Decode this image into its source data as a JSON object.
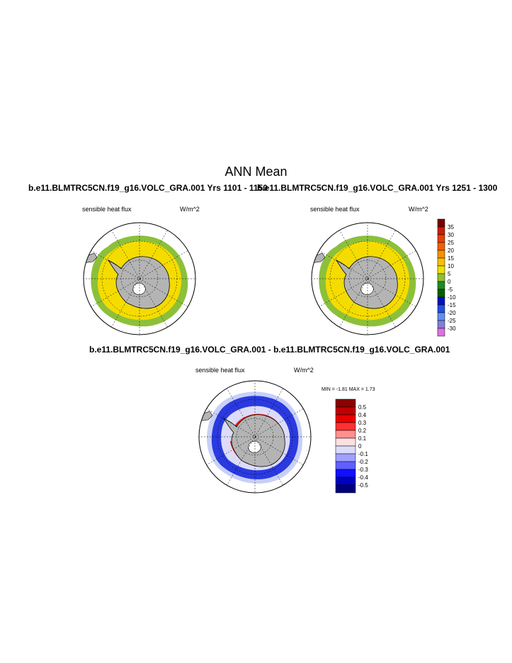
{
  "figure": {
    "main_title": "ANN Mean",
    "panel_left_title": "b.e11.BLMTRC5CN.f19_g16.VOLC_GRA.001  Yrs 1101 - 1150",
    "panel_right_title": "b.e11.BLMTRC5CN.f19_g16.VOLC_GRA.001  Yrs 1251 - 1300",
    "diff_title": "b.e11.BLMTRC5CN.f19_g16.VOLC_GRA.001 - b.e11.BLMTRC5CN.f19_g16.VOLC_GRA.001"
  },
  "panels": {
    "left": {
      "variable": "sensible heat flux",
      "units": "W/m^2"
    },
    "right": {
      "variable": "sensible heat flux",
      "units": "W/m^2"
    },
    "diff": {
      "variable": "sensible heat flux",
      "units": "W/m^2",
      "stats": "MIN =  -1.81 MAX =   1.73"
    }
  },
  "chart_data": [
    {
      "type": "heatmap",
      "projection": "south-polar-stereographic",
      "title": "b.e11.BLMTRC5CN.f19_g16.VOLC_GRA.001  Yrs 1101 - 1150",
      "variable": "sensible heat flux",
      "units": "W/m^2",
      "dominant_sea_ice_value_range": [
        10,
        15
      ],
      "outer_ring_value_range": [
        5,
        10
      ]
    },
    {
      "type": "heatmap",
      "projection": "south-polar-stereographic",
      "title": "b.e11.BLMTRC5CN.f19_g16.VOLC_GRA.001  Yrs 1251 - 1300",
      "variable": "sensible heat flux",
      "units": "W/m^2",
      "dominant_sea_ice_value_range": [
        10,
        15
      ],
      "outer_ring_value_range": [
        5,
        10
      ]
    },
    {
      "type": "heatmap",
      "projection": "south-polar-stereographic",
      "title": "b.e11.BLMTRC5CN.f19_g16.VOLC_GRA.001 - b.e11.BLMTRC5CN.f19_g16.VOLC_GRA.001",
      "variable": "sensible heat flux",
      "units": "W/m^2",
      "min": -1.81,
      "max": 1.73
    }
  ],
  "colorbars": {
    "abs": {
      "labels": [
        "35",
        "30",
        "25",
        "20",
        "15",
        "10",
        "5",
        "0",
        "-5",
        "-10",
        "-15",
        "-20",
        "-25",
        "-30"
      ],
      "colors": [
        "#7a0000",
        "#c82000",
        "#e84000",
        "#f06000",
        "#f89000",
        "#f8c000",
        "#f0e000",
        "#90c030",
        "#208a20",
        "#006000",
        "#0010c0",
        "#2050e0",
        "#6090f0",
        "#8080d8",
        "#e070e0"
      ]
    },
    "diff": {
      "labels": [
        "0.5",
        "0.4",
        "0.3",
        "0.2",
        "0.1",
        "0",
        "-0.1",
        "-0.2",
        "-0.3",
        "-0.4",
        "-0.5"
      ],
      "colors": [
        "#8c0000",
        "#c00000",
        "#e80000",
        "#ff3030",
        "#ff9090",
        "#ffe0e0",
        "#dcdcf8",
        "#a0a0ff",
        "#6060ff",
        "#1010ff",
        "#0000c0",
        "#00007c"
      ]
    }
  }
}
